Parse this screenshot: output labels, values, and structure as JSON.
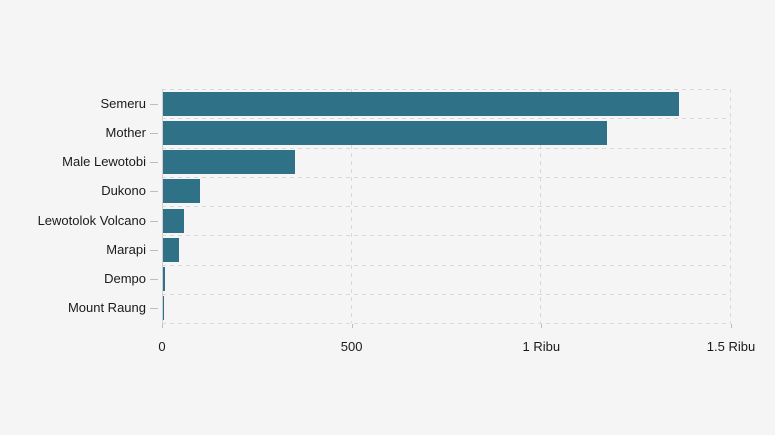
{
  "chart_data": {
    "type": "bar",
    "orientation": "horizontal",
    "title": "",
    "categories": [
      "Semeru",
      "Mother",
      "Male Lewotobi",
      "Dukono",
      "Lewotolok Volcano",
      "Marapi",
      "Dempo",
      "Mount Raung"
    ],
    "values": [
      1360,
      1170,
      347,
      97,
      55,
      42,
      5,
      1
    ],
    "xlim": [
      0,
      1500
    ],
    "x_ticks": [
      {
        "value": 0,
        "label": "0"
      },
      {
        "value": 500,
        "label": "500"
      },
      {
        "value": 1000,
        "label": "1 Ribu"
      },
      {
        "value": 1500,
        "label": "1.5 Ribu"
      }
    ],
    "grid": "dashed horizontal row separators and dashed vertical gridlines",
    "legend_position": "none"
  },
  "colors": {
    "page_background": "#f5f5f5",
    "bar": "#2f7288",
    "gridline": "#d9d9d9",
    "axis_line": "#d0d0d0",
    "tick_mark": "#bdbdbd",
    "label_text": "#1a1a1a"
  }
}
